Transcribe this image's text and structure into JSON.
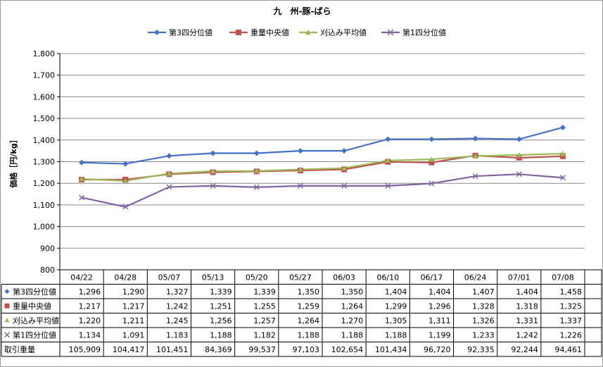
{
  "chart_data": {
    "type": "line",
    "title": "九　州-豚-ばら",
    "ylabel": "価格［円/kg］",
    "ylim": [
      800,
      1800
    ],
    "yticks": [
      "800",
      "900",
      "1,000",
      "1,100",
      "1,200",
      "1,300",
      "1,400",
      "1,500",
      "1,600",
      "1,700",
      "1,800"
    ],
    "ytick_values": [
      800,
      900,
      1000,
      1100,
      1200,
      1300,
      1400,
      1500,
      1600,
      1700,
      1800
    ],
    "grid": true,
    "legend_position": "top",
    "categories": [
      "04/22",
      "04/28",
      "05/07",
      "05/13",
      "05/20",
      "05/27",
      "06/03",
      "06/10",
      "06/17",
      "06/24",
      "07/01",
      "07/08"
    ],
    "series": [
      {
        "name": "第3四分位値",
        "color": "#4472C4",
        "marker": "diamond",
        "values": [
          1296,
          1290,
          1327,
          1339,
          1339,
          1350,
          1350,
          1404,
          1404,
          1407,
          1404,
          1458
        ],
        "labels": [
          "1,296",
          "1,290",
          "1,327",
          "1,339",
          "1,339",
          "1,350",
          "1,350",
          "1,404",
          "1,404",
          "1,407",
          "1,404",
          "1,458"
        ]
      },
      {
        "name": "重量中央値",
        "color": "#C0504D",
        "marker": "square",
        "values": [
          1217,
          1217,
          1242,
          1251,
          1255,
          1259,
          1264,
          1299,
          1296,
          1328,
          1318,
          1325
        ],
        "labels": [
          "1,217",
          "1,217",
          "1,242",
          "1,251",
          "1,255",
          "1,259",
          "1,264",
          "1,299",
          "1,296",
          "1,328",
          "1,318",
          "1,325"
        ]
      },
      {
        "name": "刈込み平均値",
        "color": "#9BBB59",
        "marker": "triangle",
        "values": [
          1220,
          1211,
          1245,
          1256,
          1257,
          1264,
          1270,
          1305,
          1311,
          1326,
          1331,
          1337
        ],
        "labels": [
          "1,220",
          "1,211",
          "1,245",
          "1,256",
          "1,257",
          "1,264",
          "1,270",
          "1,305",
          "1,311",
          "1,326",
          "1,331",
          "1,337"
        ]
      },
      {
        "name": "第1四分位値",
        "color": "#8064A2",
        "marker": "x",
        "values": [
          1134,
          1091,
          1183,
          1188,
          1182,
          1188,
          1188,
          1188,
          1199,
          1233,
          1242,
          1226
        ],
        "labels": [
          "1,134",
          "1,091",
          "1,183",
          "1,188",
          "1,182",
          "1,188",
          "1,188",
          "1,188",
          "1,199",
          "1,233",
          "1,242",
          "1,226"
        ]
      }
    ],
    "volume_row": {
      "name": "取引重量",
      "labels": [
        "105,909",
        "104,417",
        "101,451",
        "84,369",
        "99,537",
        "97,103",
        "102,654",
        "101,434",
        "96,720",
        "92,335",
        "92,244",
        "94,461"
      ]
    }
  }
}
